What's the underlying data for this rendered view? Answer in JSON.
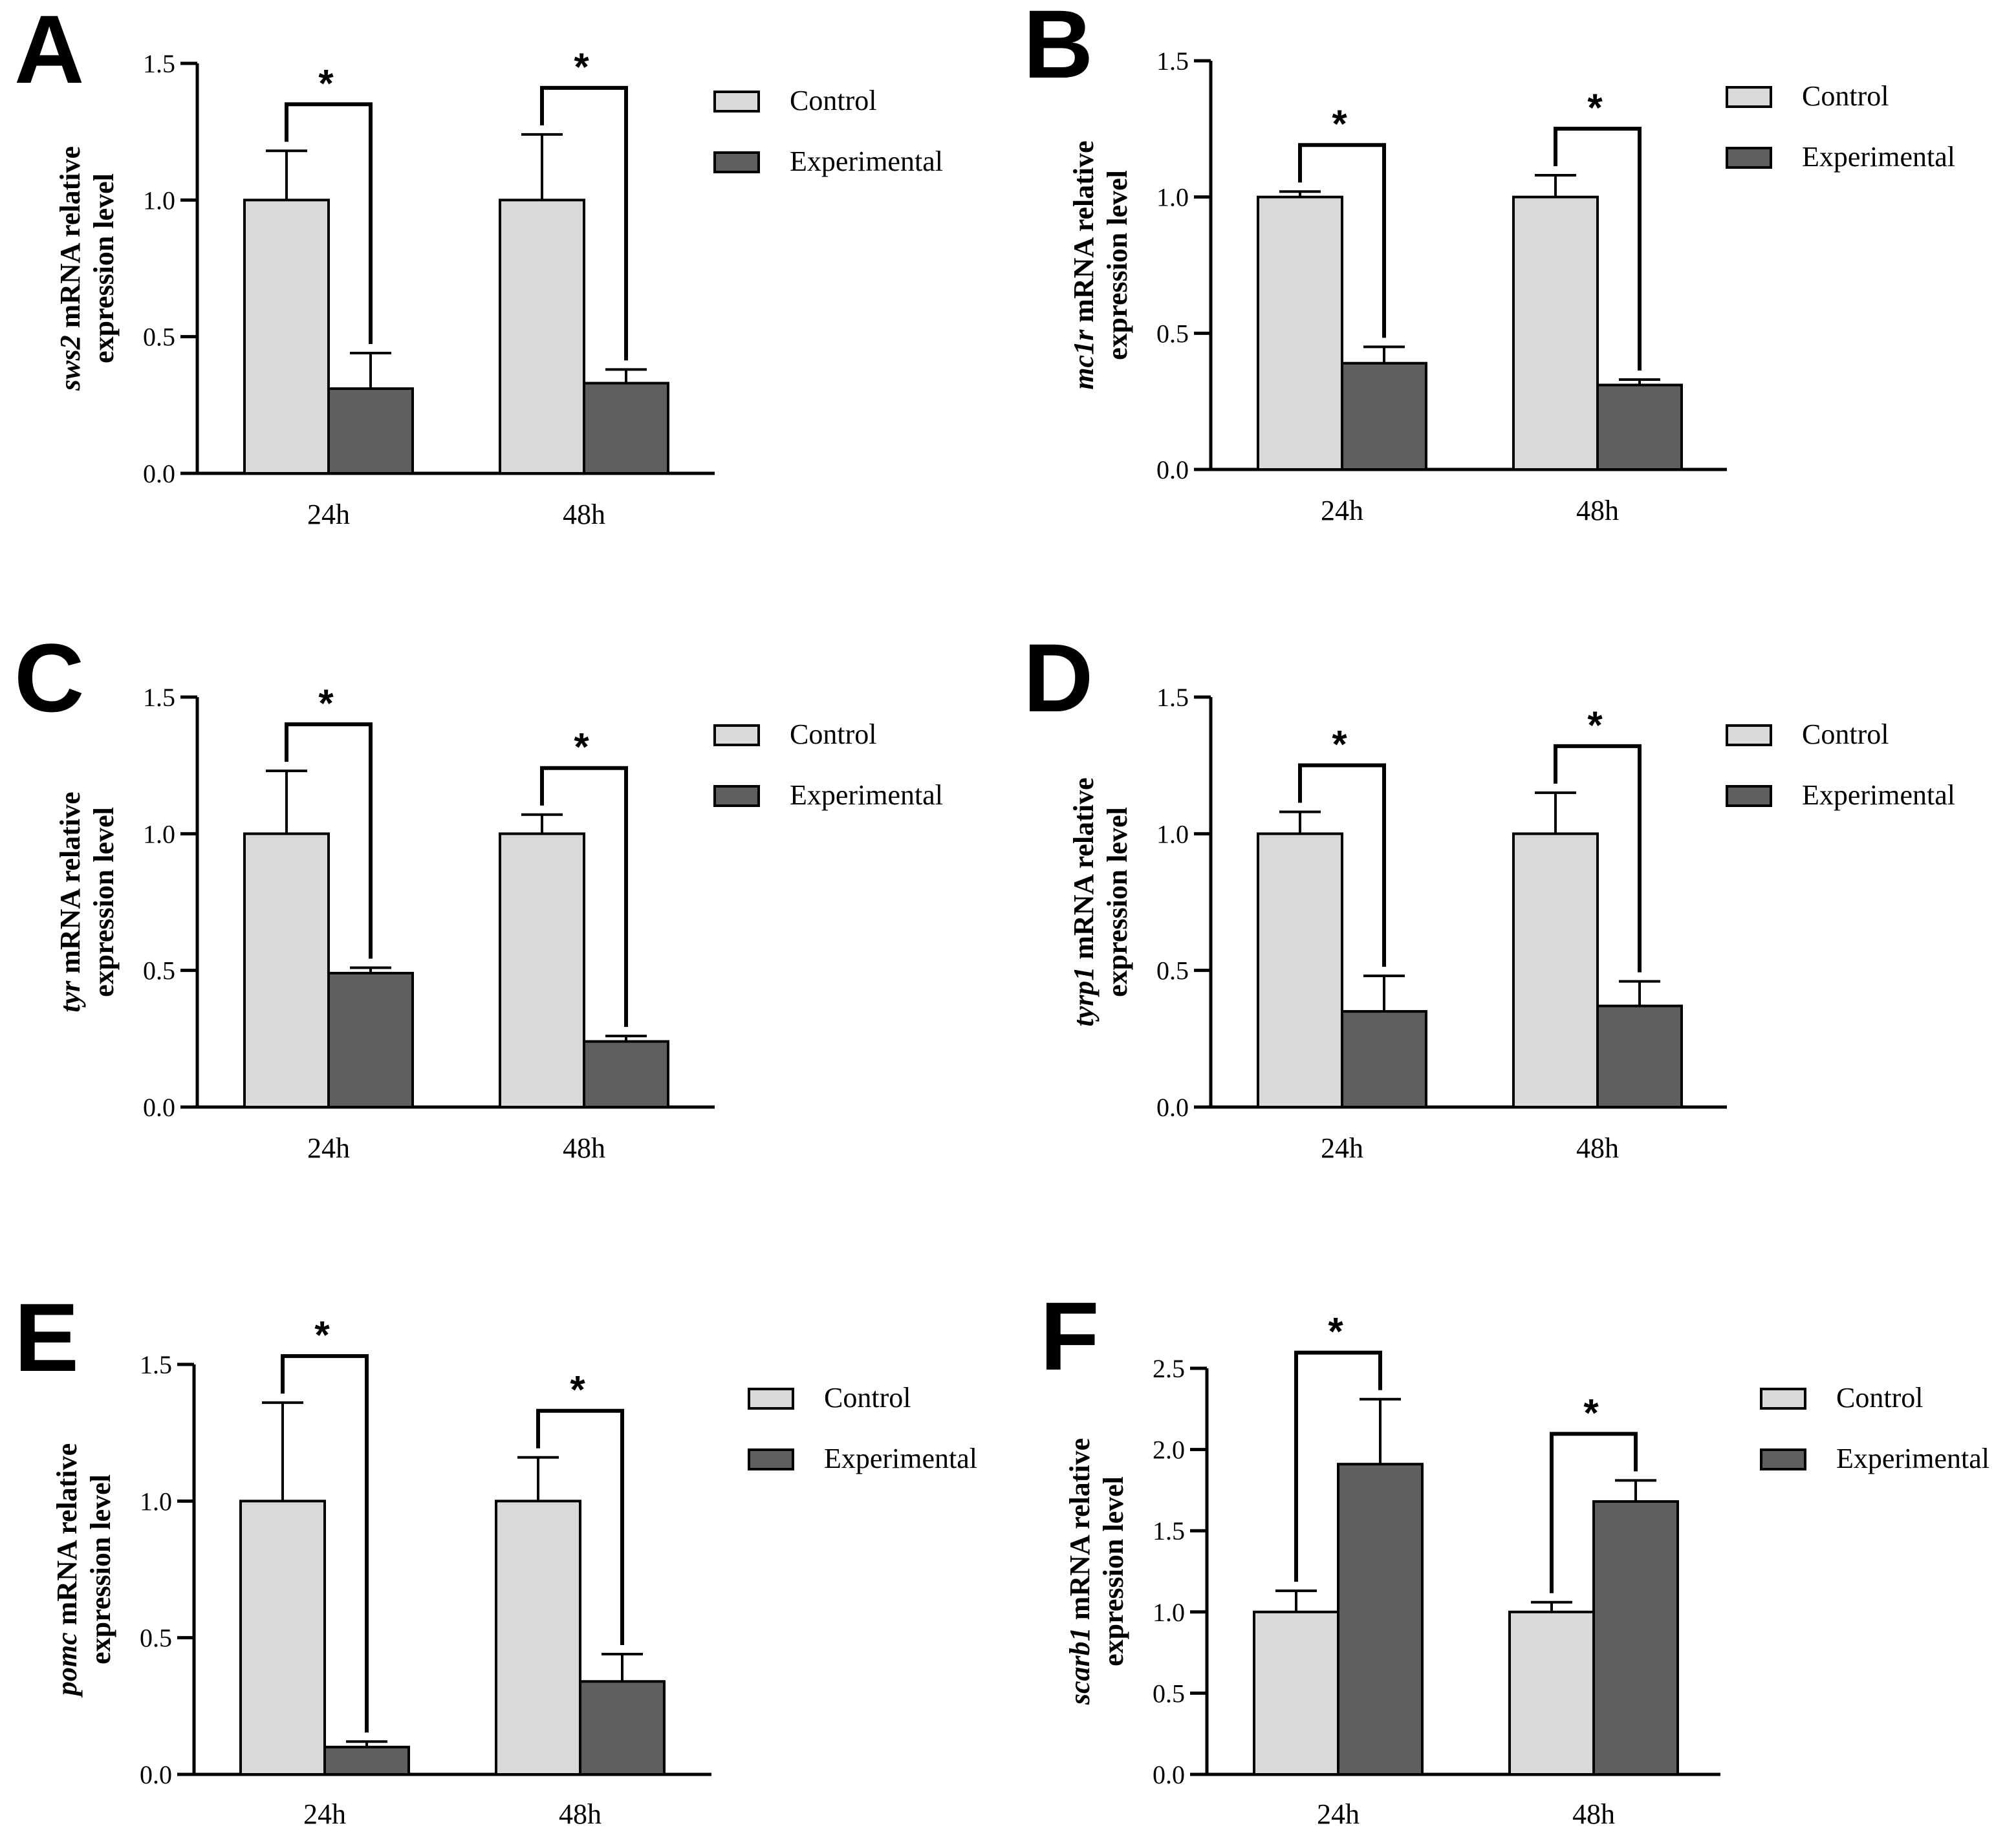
{
  "colors": {
    "control": "#d9d9d9",
    "experimental": "#5f5f5f",
    "axis": "#000000"
  },
  "chart_data": [
    {
      "panel": "A",
      "type": "bar",
      "categories": [
        "24h",
        "48h"
      ],
      "series": [
        {
          "name": "Control",
          "values": [
            1.0,
            1.0
          ],
          "errors": [
            0.18,
            0.24
          ]
        },
        {
          "name": "Experimental",
          "values": [
            0.31,
            0.33
          ],
          "errors": [
            0.13,
            0.05
          ]
        }
      ],
      "significance": [
        "*",
        "*"
      ],
      "ylabel_gene": "sws2",
      "ylabel_rest": " mRNA relative",
      "ylabel_line2": "expression level",
      "ylim": [
        0,
        1.5
      ],
      "yticks": [
        "0.0",
        "0.5",
        "1.0",
        "1.5"
      ],
      "legend": [
        "Control",
        "Experimental"
      ]
    },
    {
      "panel": "B",
      "type": "bar",
      "categories": [
        "24h",
        "48h"
      ],
      "series": [
        {
          "name": "Control",
          "values": [
            1.0,
            1.0
          ],
          "errors": [
            0.02,
            0.08
          ]
        },
        {
          "name": "Experimental",
          "values": [
            0.39,
            0.31
          ],
          "errors": [
            0.06,
            0.02
          ]
        }
      ],
      "significance": [
        "*",
        "*"
      ],
      "ylabel_gene": "mc1r",
      "ylabel_rest": " mRNA relative",
      "ylabel_line2": "expression level",
      "ylim": [
        0,
        1.5
      ],
      "yticks": [
        "0.0",
        "0.5",
        "1.0",
        "1.5"
      ],
      "legend": [
        "Control",
        "Experimental"
      ]
    },
    {
      "panel": "C",
      "type": "bar",
      "categories": [
        "24h",
        "48h"
      ],
      "series": [
        {
          "name": "Control",
          "values": [
            1.0,
            1.0
          ],
          "errors": [
            0.23,
            0.07
          ]
        },
        {
          "name": "Experimental",
          "values": [
            0.49,
            0.24
          ],
          "errors": [
            0.02,
            0.02
          ]
        }
      ],
      "significance": [
        "*",
        "*"
      ],
      "ylabel_gene": "tyr",
      "ylabel_rest": " mRNA relative",
      "ylabel_line2": "expression level",
      "ylim": [
        0,
        1.5
      ],
      "yticks": [
        "0.0",
        "0.5",
        "1.0",
        "1.5"
      ],
      "legend": [
        "Control",
        "Experimental"
      ]
    },
    {
      "panel": "D",
      "type": "bar",
      "categories": [
        "24h",
        "48h"
      ],
      "series": [
        {
          "name": "Control",
          "values": [
            1.0,
            1.0
          ],
          "errors": [
            0.08,
            0.15
          ]
        },
        {
          "name": "Experimental",
          "values": [
            0.35,
            0.37
          ],
          "errors": [
            0.13,
            0.09
          ]
        }
      ],
      "significance": [
        "*",
        "*"
      ],
      "ylabel_gene": "tyrp1",
      "ylabel_rest": " mRNA relative",
      "ylabel_line2": "expression level",
      "ylim": [
        0,
        1.5
      ],
      "yticks": [
        "0.0",
        "0.5",
        "1.0",
        "1.5"
      ],
      "legend": [
        "Control",
        "Experimental"
      ]
    },
    {
      "panel": "E",
      "type": "bar",
      "categories": [
        "24h",
        "48h"
      ],
      "series": [
        {
          "name": "Control",
          "values": [
            1.0,
            1.0
          ],
          "errors": [
            0.36,
            0.16
          ]
        },
        {
          "name": "Experimental",
          "values": [
            0.1,
            0.34
          ],
          "errors": [
            0.02,
            0.1
          ]
        }
      ],
      "significance": [
        "*",
        "*"
      ],
      "ylabel_gene": "pomc",
      "ylabel_rest": " mRNA relative",
      "ylabel_line2": "expression level",
      "ylim": [
        0,
        1.5
      ],
      "yticks": [
        "0.0",
        "0.5",
        "1.0",
        "1.5"
      ],
      "legend": [
        "Control",
        "Experimental"
      ]
    },
    {
      "panel": "F",
      "type": "bar",
      "categories": [
        "24h",
        "48h"
      ],
      "series": [
        {
          "name": "Control",
          "values": [
            1.0,
            1.0
          ],
          "errors": [
            0.13,
            0.06
          ]
        },
        {
          "name": "Experimental",
          "values": [
            1.91,
            1.68
          ],
          "errors": [
            0.4,
            0.13
          ]
        }
      ],
      "significance": [
        "*",
        "*"
      ],
      "ylabel_gene": "scarb1",
      "ylabel_rest": " mRNA relative",
      "ylabel_line2": "expression level",
      "ylim": [
        0,
        2.5
      ],
      "yticks": [
        "0.0",
        "0.5",
        "1.0",
        "1.5",
        "2.0",
        "2.5"
      ],
      "legend": [
        "Control",
        "Experimental"
      ]
    }
  ]
}
